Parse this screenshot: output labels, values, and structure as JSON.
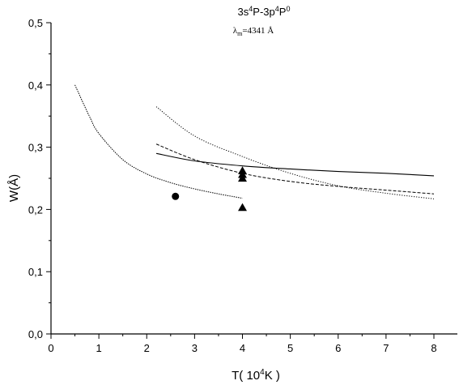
{
  "chart_data": {
    "type": "line",
    "title": {
      "line1_prefix": "3s",
      "sup1": "4",
      "line1_middle": "P-3p",
      "sup2": "4",
      "line1_suffix": "P",
      "sup3": "0"
    },
    "subtitle": {
      "symbol": "λ",
      "sub": "m",
      "value": "=4341 Å"
    },
    "xlabel": {
      "prefix": "T( 10",
      "sup": "4",
      "suffix": "K )"
    },
    "ylabel": "W(Å)",
    "xlim": [
      0,
      8.5
    ],
    "ylim": [
      0,
      0.5
    ],
    "x_ticks": [
      0,
      1,
      2,
      3,
      4,
      5,
      6,
      7,
      8
    ],
    "x_tick_labels": [
      "0",
      "1",
      "2",
      "3",
      "4",
      "5",
      "6",
      "7",
      "8"
    ],
    "y_ticks": [
      0,
      0.1,
      0.2,
      0.3,
      0.4,
      0.5
    ],
    "y_tick_labels": [
      "0,0",
      "0,1",
      "0,2",
      "0,3",
      "0,4",
      "0,5"
    ],
    "grid": false,
    "legend": "none",
    "series": [
      {
        "style": "solid",
        "x": [
          2.2,
          3,
          4,
          5,
          6,
          7,
          8
        ],
        "y": [
          0.29,
          0.278,
          0.27,
          0.265,
          0.261,
          0.258,
          0.254
        ]
      },
      {
        "style": "dashed",
        "x": [
          2.2,
          3,
          4,
          5,
          6,
          7,
          8
        ],
        "y": [
          0.305,
          0.28,
          0.258,
          0.245,
          0.237,
          0.231,
          0.225
        ]
      },
      {
        "style": "dotted",
        "x": [
          2.2,
          3,
          4,
          5,
          6,
          7,
          8
        ],
        "y": [
          0.365,
          0.318,
          0.285,
          0.258,
          0.238,
          0.226,
          0.217
        ]
      },
      {
        "style": "short-dash",
        "x": [
          0.5,
          0.8,
          1,
          1.5,
          2,
          2.5,
          3,
          3.5,
          4
        ],
        "y": [
          0.4,
          0.35,
          0.322,
          0.28,
          0.257,
          0.243,
          0.233,
          0.225,
          0.218
        ]
      }
    ],
    "points": [
      {
        "marker": "circle",
        "x": 2.6,
        "y": 0.221
      },
      {
        "marker": "triangle",
        "x": 4.0,
        "y": 0.262
      },
      {
        "marker": "triangle",
        "x": 4.0,
        "y": 0.256
      },
      {
        "marker": "triangle",
        "x": 4.0,
        "y": 0.25
      },
      {
        "marker": "triangle",
        "x": 4.0,
        "y": 0.203
      }
    ]
  }
}
